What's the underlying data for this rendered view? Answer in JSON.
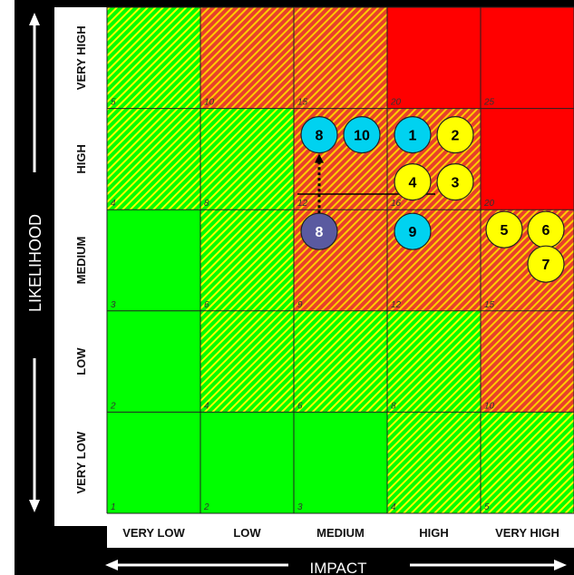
{
  "axes": {
    "y_title": "LIKELIHOOD",
    "x_title": "IMPACT",
    "y_levels": [
      "VERY LOW",
      "LOW",
      "MEDIUM",
      "HIGH",
      "VERY HIGH"
    ],
    "x_levels": [
      "VERY LOW",
      "LOW",
      "MEDIUM",
      "HIGH",
      "VERY HIGH"
    ]
  },
  "colors": {
    "low": "#00ff00",
    "moderate": "#e8402a",
    "high": "#ff0000",
    "hatch_green": "#00ff00",
    "hatch_yellow": "#ffff00",
    "hatch_orange": "#ffcc00",
    "frame": "#000000",
    "marker_current": "#00d2f0",
    "marker_secondary": "#ffff00",
    "marker_previous": "#5a5aa0"
  },
  "cells": [
    {
      "impact": 1,
      "likelihood": 5,
      "score": "5",
      "fill": "hatch-green"
    },
    {
      "impact": 2,
      "likelihood": 5,
      "score": "10",
      "fill": "hatch-orange"
    },
    {
      "impact": 3,
      "likelihood": 5,
      "score": "15",
      "fill": "hatch-orange"
    },
    {
      "impact": 4,
      "likelihood": 5,
      "score": "20",
      "fill": "red"
    },
    {
      "impact": 5,
      "likelihood": 5,
      "score": "25",
      "fill": "red"
    },
    {
      "impact": 1,
      "likelihood": 4,
      "score": "4",
      "fill": "hatch-green"
    },
    {
      "impact": 2,
      "likelihood": 4,
      "score": "8",
      "fill": "hatch-green"
    },
    {
      "impact": 3,
      "likelihood": 4,
      "score": "12",
      "fill": "hatch-orange"
    },
    {
      "impact": 4,
      "likelihood": 4,
      "score": "16",
      "fill": "hatch-orange"
    },
    {
      "impact": 5,
      "likelihood": 4,
      "score": "20",
      "fill": "red"
    },
    {
      "impact": 1,
      "likelihood": 3,
      "score": "3",
      "fill": "green"
    },
    {
      "impact": 2,
      "likelihood": 3,
      "score": "6",
      "fill": "hatch-green"
    },
    {
      "impact": 3,
      "likelihood": 3,
      "score": "9",
      "fill": "hatch-orange"
    },
    {
      "impact": 4,
      "likelihood": 3,
      "score": "12",
      "fill": "hatch-orange"
    },
    {
      "impact": 5,
      "likelihood": 3,
      "score": "15",
      "fill": "hatch-orange"
    },
    {
      "impact": 1,
      "likelihood": 2,
      "score": "2",
      "fill": "green"
    },
    {
      "impact": 2,
      "likelihood": 2,
      "score": "4",
      "fill": "hatch-green"
    },
    {
      "impact": 3,
      "likelihood": 2,
      "score": "6",
      "fill": "hatch-green"
    },
    {
      "impact": 4,
      "likelihood": 2,
      "score": "8",
      "fill": "hatch-green"
    },
    {
      "impact": 5,
      "likelihood": 2,
      "score": "10",
      "fill": "hatch-orange"
    },
    {
      "impact": 1,
      "likelihood": 1,
      "score": "1",
      "fill": "green"
    },
    {
      "impact": 2,
      "likelihood": 1,
      "score": "2",
      "fill": "green"
    },
    {
      "impact": 3,
      "likelihood": 1,
      "score": "3",
      "fill": "green"
    },
    {
      "impact": 4,
      "likelihood": 1,
      "score": "4",
      "fill": "hatch-green"
    },
    {
      "impact": 5,
      "likelihood": 1,
      "score": "5",
      "fill": "hatch-green"
    }
  ],
  "risks": [
    {
      "label": "8",
      "style": "current",
      "impact": 3,
      "likelihood": 4
    },
    {
      "label": "10",
      "style": "current",
      "impact": 3,
      "likelihood": 4
    },
    {
      "label": "1",
      "style": "current",
      "impact": 4,
      "likelihood": 4
    },
    {
      "label": "2",
      "style": "secondary",
      "impact": 4,
      "likelihood": 4
    },
    {
      "label": "4",
      "style": "secondary",
      "impact": 4,
      "likelihood": 4
    },
    {
      "label": "3",
      "style": "secondary",
      "impact": 4,
      "likelihood": 4
    },
    {
      "label": "8",
      "style": "previous",
      "impact": 3,
      "likelihood": 3
    },
    {
      "label": "9",
      "style": "current",
      "impact": 4,
      "likelihood": 3
    },
    {
      "label": "5",
      "style": "secondary",
      "impact": 5,
      "likelihood": 3
    },
    {
      "label": "6",
      "style": "secondary",
      "impact": 5,
      "likelihood": 3
    },
    {
      "label": "7",
      "style": "secondary",
      "impact": 5,
      "likelihood": 3
    }
  ],
  "movement": {
    "label": "8",
    "from": {
      "impact": 3,
      "likelihood": 3
    },
    "to": {
      "impact": 3,
      "likelihood": 4
    }
  }
}
